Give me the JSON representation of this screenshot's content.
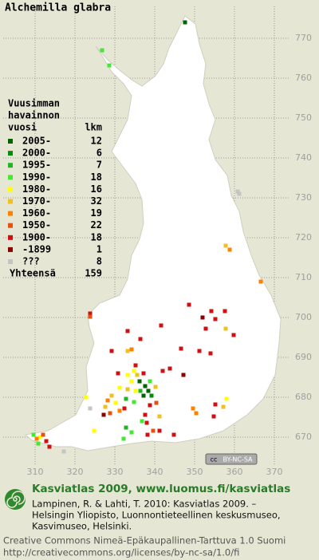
{
  "title": "Alchemilla glabra",
  "map": {
    "xlim": [
      302,
      374
    ],
    "ylim": [
      662,
      778
    ],
    "xticks": [
      310,
      320,
      330,
      340,
      350,
      360,
      370
    ],
    "yticks": [
      670,
      680,
      690,
      700,
      710,
      720,
      730,
      740,
      750,
      760,
      770
    ],
    "badge": {
      "cc": "cc",
      "text": "BY-NC-SA"
    },
    "squares": [
      {
        "x": 347.6,
        "y": 774,
        "period": 0
      },
      {
        "x": 326.8,
        "y": 767,
        "period": 3
      },
      {
        "x": 328.6,
        "y": 763.2,
        "period": 3
      },
      {
        "x": 360.8,
        "y": 731.6,
        "period": 10
      },
      {
        "x": 361.2,
        "y": 731,
        "period": 10
      },
      {
        "x": 357.8,
        "y": 718,
        "period": 5
      },
      {
        "x": 358.8,
        "y": 717,
        "period": 6
      },
      {
        "x": 366.6,
        "y": 709,
        "period": 6
      },
      {
        "x": 348.6,
        "y": 703.2,
        "period": 8
      },
      {
        "x": 354.2,
        "y": 701.6,
        "period": 8
      },
      {
        "x": 357.6,
        "y": 701.6,
        "period": 8
      },
      {
        "x": 355.2,
        "y": 699.6,
        "period": 8
      },
      {
        "x": 352,
        "y": 700,
        "period": 9
      },
      {
        "x": 352.8,
        "y": 697.2,
        "period": 8
      },
      {
        "x": 357.8,
        "y": 697.2,
        "period": 5
      },
      {
        "x": 323.8,
        "y": 701,
        "period": 8
      },
      {
        "x": 323.8,
        "y": 700.2,
        "period": 7
      },
      {
        "x": 341.6,
        "y": 698,
        "period": 8
      },
      {
        "x": 346.6,
        "y": 692.2,
        "period": 8
      },
      {
        "x": 351.2,
        "y": 691.6,
        "period": 8
      },
      {
        "x": 354,
        "y": 691,
        "period": 8
      },
      {
        "x": 359.8,
        "y": 695.6,
        "period": 8
      },
      {
        "x": 333.2,
        "y": 696.6,
        "period": 8
      },
      {
        "x": 336.4,
        "y": 694.6,
        "period": 8
      },
      {
        "x": 334.2,
        "y": 692,
        "period": 6
      },
      {
        "x": 329.2,
        "y": 691.6,
        "period": 8
      },
      {
        "x": 337.2,
        "y": 686,
        "period": 8
      },
      {
        "x": 342,
        "y": 686.6,
        "period": 8
      },
      {
        "x": 343.8,
        "y": 687.2,
        "period": 8
      },
      {
        "x": 347.2,
        "y": 685.6,
        "period": 9
      },
      {
        "x": 330.8,
        "y": 686,
        "period": 8
      },
      {
        "x": 333.2,
        "y": 685.6,
        "period": 4
      },
      {
        "x": 334.8,
        "y": 686.6,
        "period": 4
      },
      {
        "x": 335.6,
        "y": 685.6,
        "period": 5
      },
      {
        "x": 334.2,
        "y": 684,
        "period": 4
      },
      {
        "x": 336.2,
        "y": 684,
        "period": 0
      },
      {
        "x": 337.6,
        "y": 682.8,
        "period": 0
      },
      {
        "x": 338.4,
        "y": 681.6,
        "period": 0
      },
      {
        "x": 337.2,
        "y": 680.4,
        "period": 0
      },
      {
        "x": 339.2,
        "y": 680.4,
        "period": 1
      },
      {
        "x": 336.4,
        "y": 681.6,
        "period": 2
      },
      {
        "x": 335.2,
        "y": 681.6,
        "period": 4
      },
      {
        "x": 333.2,
        "y": 682,
        "period": 5
      },
      {
        "x": 331.2,
        "y": 682.4,
        "period": 4
      },
      {
        "x": 329.2,
        "y": 680.4,
        "period": 5
      },
      {
        "x": 328.2,
        "y": 679.2,
        "period": 6
      },
      {
        "x": 327.6,
        "y": 677.6,
        "period": 5
      },
      {
        "x": 330.2,
        "y": 678.6,
        "period": 4
      },
      {
        "x": 331.2,
        "y": 676.6,
        "period": 6
      },
      {
        "x": 328.8,
        "y": 676,
        "period": 7
      },
      {
        "x": 332.4,
        "y": 677.2,
        "period": 8
      },
      {
        "x": 332.8,
        "y": 679.6,
        "period": 2
      },
      {
        "x": 334.8,
        "y": 678.8,
        "period": 3
      },
      {
        "x": 338.8,
        "y": 678,
        "period": 8
      },
      {
        "x": 340.4,
        "y": 678.6,
        "period": 7
      },
      {
        "x": 337.6,
        "y": 675.6,
        "period": 8
      },
      {
        "x": 338,
        "y": 673.6,
        "period": 8
      },
      {
        "x": 336.8,
        "y": 674,
        "period": 3
      },
      {
        "x": 332.8,
        "y": 672.4,
        "period": 2
      },
      {
        "x": 334.2,
        "y": 671.2,
        "period": 3
      },
      {
        "x": 332.2,
        "y": 669.6,
        "period": 3
      },
      {
        "x": 338.2,
        "y": 670.6,
        "period": 8
      },
      {
        "x": 339.6,
        "y": 671.6,
        "period": 7
      },
      {
        "x": 341.2,
        "y": 671.6,
        "period": 8
      },
      {
        "x": 341.2,
        "y": 675.2,
        "period": 5
      },
      {
        "x": 344.8,
        "y": 670.6,
        "period": 8
      },
      {
        "x": 349.6,
        "y": 677.2,
        "period": 6
      },
      {
        "x": 350.4,
        "y": 676,
        "period": 6
      },
      {
        "x": 355.2,
        "y": 678.2,
        "period": 8
      },
      {
        "x": 354.8,
        "y": 675.2,
        "period": 8
      },
      {
        "x": 357.2,
        "y": 677.6,
        "period": 5
      },
      {
        "x": 358,
        "y": 679.6,
        "period": 4
      },
      {
        "x": 327.2,
        "y": 675.6,
        "period": 9
      },
      {
        "x": 324.8,
        "y": 671.6,
        "period": 4
      },
      {
        "x": 322.8,
        "y": 680,
        "period": 4
      },
      {
        "x": 323.8,
        "y": 677.2,
        "period": 10
      },
      {
        "x": 309.6,
        "y": 670.6,
        "period": 3
      },
      {
        "x": 311.2,
        "y": 670,
        "period": 4
      },
      {
        "x": 312.8,
        "y": 669,
        "period": 8
      },
      {
        "x": 310.8,
        "y": 668.4,
        "period": 3
      },
      {
        "x": 313.6,
        "y": 667.6,
        "period": 8
      },
      {
        "x": 312,
        "y": 670.6,
        "period": 7
      },
      {
        "x": 317.2,
        "y": 666.4,
        "period": 10
      },
      {
        "x": 310.4,
        "y": 669.6,
        "period": 6
      },
      {
        "x": 338.8,
        "y": 684,
        "period": 3
      },
      {
        "x": 340.2,
        "y": 682.6,
        "period": 5
      },
      {
        "x": 335.2,
        "y": 688,
        "period": 8
      },
      {
        "x": 333.2,
        "y": 691.6,
        "period": 5
      }
    ]
  },
  "legend": {
    "heading": [
      "Vuusimman",
      "havainnon",
      "vuosi"
    ],
    "count_header": "lkm",
    "items": [
      {
        "label": "2005-",
        "count": 12,
        "color": "#006400"
      },
      {
        "label": "2000-",
        "count": 6,
        "color": "#0a8a0a"
      },
      {
        "label": "1995-",
        "count": 7,
        "color": "#22b422"
      },
      {
        "label": "1990-",
        "count": 18,
        "color": "#44e830"
      },
      {
        "label": "1980-",
        "count": 16,
        "color": "#ffff00"
      },
      {
        "label": "1970-",
        "count": 32,
        "color": "#f0c020"
      },
      {
        "label": "1960-",
        "count": 19,
        "color": "#ff8000"
      },
      {
        "label": "1950-",
        "count": 22,
        "color": "#e65010"
      },
      {
        "label": "1900-",
        "count": 18,
        "color": "#d01010"
      },
      {
        "label": "-1899",
        "count": 1,
        "color": "#8a0000"
      },
      {
        "label": "???",
        "count": 8,
        "color": "#c4c4c4"
      }
    ],
    "total_label": "Yhteensä",
    "total": 159
  },
  "footer": {
    "heading": "Kasviatlas 2009, www.luomus.fi/kasviatlas",
    "citation": [
      "Lampinen, R. & Lahti, T. 2010: Kasviatlas 2009. –",
      "Helsingin Yliopisto, Luonnontieteellinen keskusmuseo,",
      "Kasvimuseo, Helsinki."
    ],
    "license": [
      "Creative Commons Nimeä-Epäkaupallinen-Tarttuva 1.0 Suomi",
      "http://creativecommons.org/licenses/by-nc-sa/1.0/fi"
    ]
  }
}
